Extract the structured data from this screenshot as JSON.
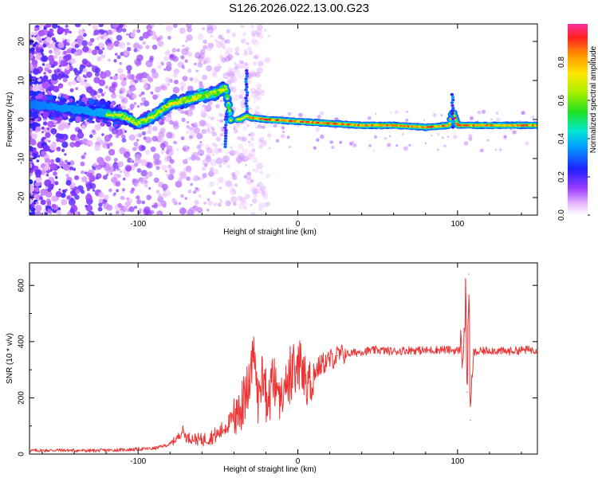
{
  "title": "S126.2026.022.13.00.G23",
  "chart_data": [
    {
      "type": "heatmap",
      "name": "spectrogram",
      "xlabel": "Height of straight line (km)",
      "ylabel": "Frequency (Hz)",
      "xlim": [
        -168,
        150
      ],
      "ylim": [
        -24.5,
        24.5
      ],
      "xticks": [
        -100,
        0,
        100
      ],
      "yticks": [
        -20,
        -10,
        0,
        10,
        20
      ],
      "colorbar": {
        "label": "Normalized spectral amplitude",
        "range": [
          0.0,
          1.0
        ],
        "ticks": [
          0.0,
          0.2,
          0.4,
          0.6,
          0.8
        ]
      },
      "ridge": {
        "x": [
          -168,
          -150,
          -130,
          -110,
          -100,
          -90,
          -80,
          -70,
          -60,
          -50,
          -45,
          -42,
          -36,
          -32,
          -30,
          -20,
          0,
          20,
          40,
          60,
          80,
          95,
          97,
          100,
          120,
          150
        ],
        "y": [
          4,
          3,
          2,
          1,
          -1,
          1,
          4,
          5,
          6,
          7,
          8,
          0,
          0,
          1,
          0.5,
          0,
          -0.5,
          -1,
          -1.5,
          -1.5,
          -2,
          -1.5,
          2,
          -1.5,
          -1.5,
          -1.5
        ]
      }
    },
    {
      "type": "line",
      "name": "snr",
      "xlabel": "Height of straight line (km)",
      "ylabel": "SNR (10 * v/v)",
      "xlim": [
        -168,
        150
      ],
      "ylim": [
        0,
        680
      ],
      "xticks": [
        -100,
        0,
        100
      ],
      "yticks": [
        0,
        200,
        400,
        600
      ],
      "series": [
        {
          "name": "SNR",
          "color": "#ee3333",
          "x": [
            -168,
            -150,
            -130,
            -110,
            -90,
            -80,
            -75,
            -72,
            -70,
            -60,
            -50,
            -45,
            -40,
            -35,
            -30,
            -27,
            -25,
            -22,
            -20,
            -15,
            -10,
            -5,
            0,
            5,
            8,
            10,
            15,
            20,
            25,
            30,
            40,
            50,
            60,
            70,
            80,
            90,
            100,
            104,
            105,
            106,
            107,
            108,
            110,
            120,
            130,
            140,
            150
          ],
          "y": [
            12,
            14,
            12,
            15,
            20,
            35,
            60,
            85,
            60,
            50,
            70,
            100,
            130,
            170,
            260,
            360,
            180,
            300,
            220,
            260,
            230,
            260,
            300,
            280,
            250,
            290,
            320,
            335,
            350,
            355,
            365,
            370,
            365,
            370,
            368,
            372,
            368,
            380,
            560,
            220,
            640,
            120,
            360,
            370,
            365,
            370,
            372
          ]
        }
      ]
    }
  ]
}
